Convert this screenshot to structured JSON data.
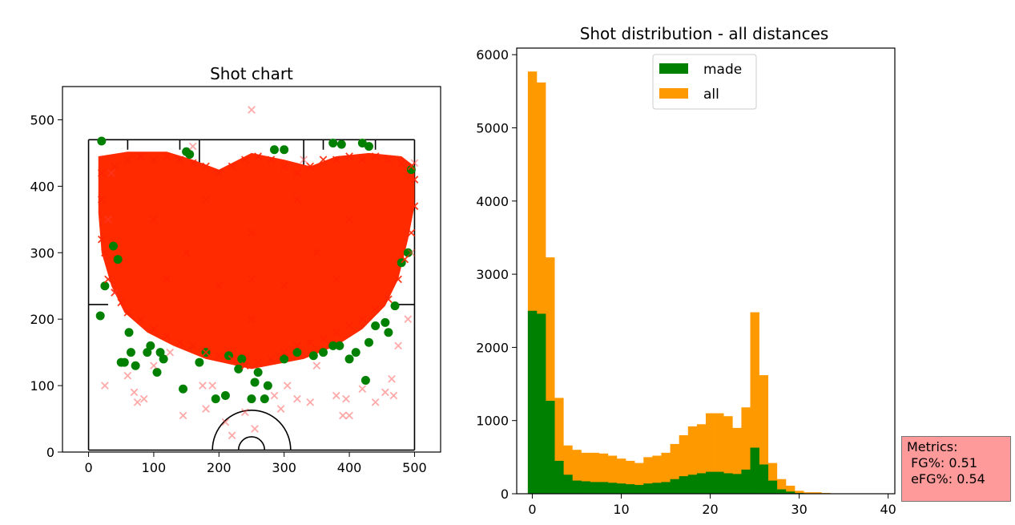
{
  "chart_data": [
    {
      "type": "scatter",
      "title": "Shot chart",
      "xlabel": "",
      "ylabel": "",
      "xlim": [
        -40,
        540
      ],
      "ylim": [
        0,
        550
      ],
      "xticks": [
        "0",
        "100",
        "200",
        "300",
        "400",
        "500"
      ],
      "yticks": [
        "0",
        "100",
        "200",
        "300",
        "400",
        "500"
      ],
      "series": [
        {
          "marker": "o",
          "color": "#008000",
          "points": [
            [
              18,
              205
            ],
            [
              20,
              468
            ],
            [
              25,
              250
            ],
            [
              38,
              310
            ],
            [
              45,
              290
            ],
            [
              50,
              135
            ],
            [
              55,
              135
            ],
            [
              62,
              180
            ],
            [
              65,
              150
            ],
            [
              72,
              130
            ],
            [
              90,
              150
            ],
            [
              95,
              160
            ],
            [
              105,
              120
            ],
            [
              110,
              150
            ],
            [
              115,
              140
            ],
            [
              145,
              95
            ],
            [
              170,
              135
            ],
            [
              180,
              150
            ],
            [
              195,
              80
            ],
            [
              210,
              85
            ],
            [
              215,
              145
            ],
            [
              230,
              125
            ],
            [
              235,
              140
            ],
            [
              250,
              80
            ],
            [
              255,
              105
            ],
            [
              260,
              120
            ],
            [
              270,
              80
            ],
            [
              275,
              100
            ],
            [
              300,
              140
            ],
            [
              320,
              150
            ],
            [
              345,
              145
            ],
            [
              360,
              150
            ],
            [
              375,
              160
            ],
            [
              385,
              160
            ],
            [
              400,
              140
            ],
            [
              410,
              150
            ],
            [
              425,
              108
            ],
            [
              430,
              165
            ],
            [
              440,
              190
            ],
            [
              455,
              195
            ],
            [
              460,
              180
            ],
            [
              470,
              220
            ],
            [
              480,
              285
            ],
            [
              490,
              300
            ],
            [
              495,
              425
            ],
            [
              375,
              465
            ],
            [
              388,
              463
            ],
            [
              420,
              465
            ],
            [
              430,
              460
            ],
            [
              150,
              452
            ],
            [
              155,
              448
            ],
            [
              285,
              455
            ],
            [
              300,
              455
            ]
          ]
        },
        {
          "marker": "x",
          "color": "#ff9090",
          "points": [
            [
              25,
              100
            ],
            [
              30,
              350
            ],
            [
              40,
              240
            ],
            [
              60,
              115
            ],
            [
              70,
              90
            ],
            [
              75,
              75
            ],
            [
              85,
              80
            ],
            [
              100,
              130
            ],
            [
              125,
              150
            ],
            [
              145,
              55
            ],
            [
              175,
              100
            ],
            [
              180,
              65
            ],
            [
              190,
              100
            ],
            [
              210,
              45
            ],
            [
              220,
              25
            ],
            [
              240,
              60
            ],
            [
              250,
              515
            ],
            [
              255,
              35
            ],
            [
              285,
              85
            ],
            [
              295,
              65
            ],
            [
              305,
              100
            ],
            [
              320,
              80
            ],
            [
              340,
              75
            ],
            [
              350,
              130
            ],
            [
              380,
              85
            ],
            [
              390,
              55
            ],
            [
              395,
              80
            ],
            [
              400,
              55
            ],
            [
              420,
              95
            ],
            [
              440,
              75
            ],
            [
              455,
              90
            ],
            [
              465,
              110
            ],
            [
              468,
              85
            ],
            [
              475,
              160
            ],
            [
              490,
              200
            ],
            [
              500,
              435
            ],
            [
              495,
              300
            ],
            [
              35,
              420
            ],
            [
              160,
              460
            ],
            [
              330,
              440
            ]
          ]
        },
        {
          "marker": "x",
          "color": "#ff2400",
          "region": "dense cloud",
          "points": [
            [
              20,
              420
            ],
            [
              40,
              430
            ],
            [
              60,
              440
            ],
            [
              80,
              445
            ],
            [
              100,
              440
            ],
            [
              120,
              445
            ],
            [
              140,
              440
            ],
            [
              160,
              435
            ],
            [
              180,
              430
            ],
            [
              200,
              420
            ],
            [
              220,
              430
            ],
            [
              240,
              440
            ],
            [
              260,
              445
            ],
            [
              280,
              440
            ],
            [
              300,
              430
            ],
            [
              320,
              420
            ],
            [
              340,
              430
            ],
            [
              360,
              440
            ],
            [
              380,
              440
            ],
            [
              400,
              445
            ],
            [
              420,
              440
            ],
            [
              440,
              445
            ],
            [
              460,
              440
            ],
            [
              480,
              435
            ],
            [
              495,
              430
            ],
            [
              20,
              380
            ],
            [
              20,
              320
            ],
            [
              25,
              300
            ],
            [
              30,
              260
            ],
            [
              40,
              240
            ],
            [
              50,
              225
            ],
            [
              60,
              210
            ],
            [
              80,
              200
            ],
            [
              100,
              185
            ],
            [
              120,
              175
            ],
            [
              140,
              165
            ],
            [
              160,
              160
            ],
            [
              180,
              150
            ],
            [
              200,
              145
            ],
            [
              220,
              140
            ],
            [
              240,
              130
            ],
            [
              260,
              135
            ],
            [
              280,
              140
            ],
            [
              300,
              150
            ],
            [
              320,
              160
            ],
            [
              340,
              165
            ],
            [
              360,
              170
            ],
            [
              380,
              180
            ],
            [
              400,
              190
            ],
            [
              420,
              200
            ],
            [
              440,
              215
            ],
            [
              460,
              230
            ],
            [
              475,
              260
            ],
            [
              485,
              290
            ],
            [
              495,
              330
            ],
            [
              500,
              370
            ],
            [
              500,
              410
            ],
            [
              100,
              350
            ],
            [
              150,
              300
            ],
            [
              200,
              250
            ],
            [
              250,
              200
            ],
            [
              300,
              250
            ],
            [
              350,
              300
            ],
            [
              400,
              350
            ],
            [
              250,
              330
            ],
            [
              180,
              380
            ],
            [
              320,
              380
            ],
            [
              120,
              260
            ],
            [
              380,
              260
            ],
            [
              250,
              260
            ]
          ]
        }
      ],
      "court_lines": "half-court diagram"
    },
    {
      "type": "histogram",
      "title": "Shot distribution - all distances",
      "xlabel": "",
      "ylabel": "",
      "xlim": [
        -1.75,
        40.75
      ],
      "ylim": [
        0,
        6090
      ],
      "xticks": [
        "0",
        "10",
        "20",
        "30",
        "40"
      ],
      "yticks": [
        "0",
        "1000",
        "2000",
        "3000",
        "4000",
        "5000",
        "6000"
      ],
      "bin_width": 1,
      "bin_start": -0.5,
      "legend": {
        "placement": "upper center",
        "entries": [
          {
            "label": "made",
            "color": "#008000"
          },
          {
            "label": "all",
            "color": "#ff9900"
          }
        ]
      },
      "series": [
        {
          "name": "made",
          "color": "#008000",
          "values": [
            2500,
            2460,
            1270,
            450,
            260,
            180,
            170,
            160,
            160,
            150,
            140,
            130,
            120,
            140,
            150,
            160,
            200,
            240,
            260,
            280,
            300,
            300,
            280,
            270,
            330,
            630,
            400,
            180,
            60,
            30,
            10,
            5,
            3,
            2,
            1,
            0,
            0,
            0,
            0,
            0
          ]
        },
        {
          "name": "all",
          "color": "#ff9900",
          "values": [
            5770,
            5620,
            3230,
            1310,
            660,
            600,
            560,
            560,
            550,
            520,
            480,
            450,
            420,
            500,
            520,
            560,
            680,
            800,
            920,
            950,
            1100,
            1100,
            1060,
            900,
            1180,
            2480,
            1620,
            420,
            200,
            110,
            40,
            20,
            20,
            10,
            5,
            3,
            1,
            2,
            1,
            0
          ]
        }
      ]
    }
  ],
  "metrics": {
    "title": "Metrics:",
    "fg": " FG%: 0.51",
    "efg": " eFG%: 0.54"
  }
}
